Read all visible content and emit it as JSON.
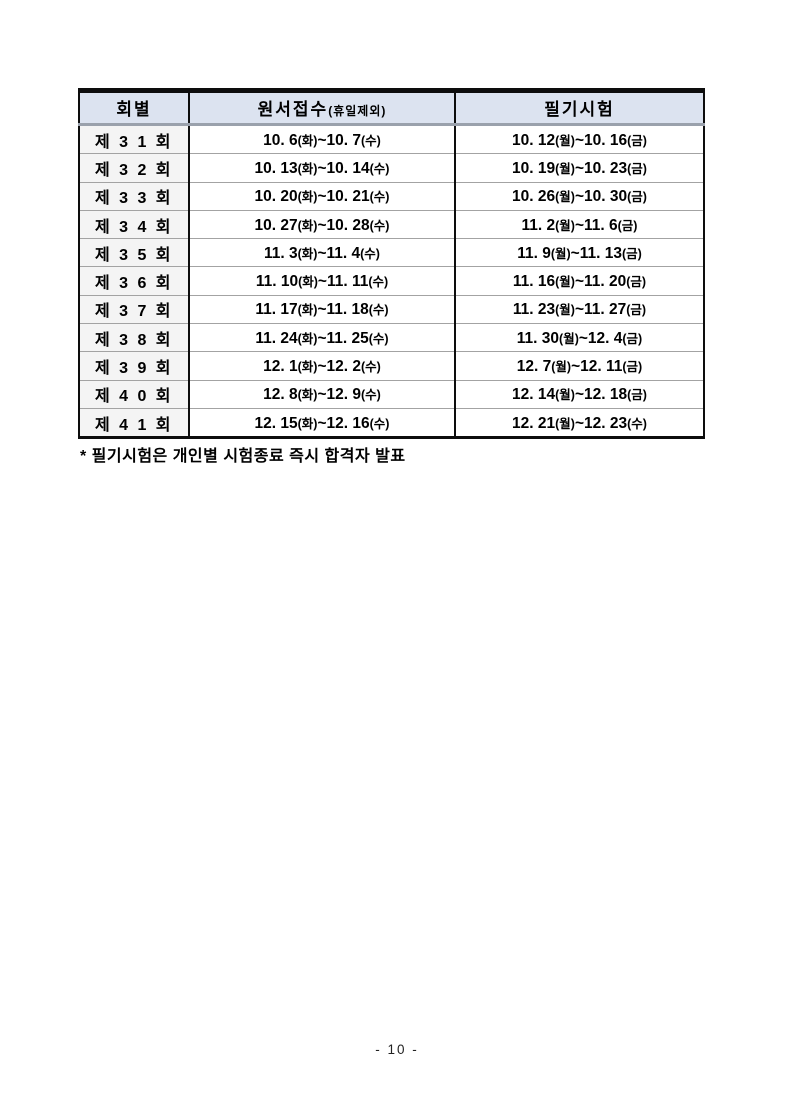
{
  "colors": {
    "header_background": "#dce3f0",
    "round_column_background": "#f4f4f4",
    "table_border": "#0d0d0d",
    "header_underline": "#9aa1ac",
    "row_separator": "#a3a3a3"
  },
  "table": {
    "headers": [
      {
        "label": "회별"
      },
      {
        "label": "원서접수",
        "sub": "(휴일제외)"
      },
      {
        "label": "필기시험"
      }
    ],
    "rows": [
      {
        "round": "제 3 1 회",
        "application": "10. 6(화)~10. 7(수)",
        "exam": "10. 12(월)~10. 16(금)"
      },
      {
        "round": "제 3 2 회",
        "application": "10. 13(화)~10. 14(수)",
        "exam": "10. 19(월)~10. 23(금)"
      },
      {
        "round": "제 3 3 회",
        "application": "10. 20(화)~10. 21(수)",
        "exam": "10. 26(월)~10. 30(금)"
      },
      {
        "round": "제 3 4 회",
        "application": "10. 27(화)~10. 28(수)",
        "exam": "11. 2(월)~11. 6(금)"
      },
      {
        "round": "제 3 5 회",
        "application": "11. 3(화)~11. 4(수)",
        "exam": "11. 9(월)~11. 13(금)"
      },
      {
        "round": "제 3 6 회",
        "application": "11. 10(화)~11. 11(수)",
        "exam": "11. 16(월)~11. 20(금)"
      },
      {
        "round": "제 3 7 회",
        "application": "11. 17(화)~11. 18(수)",
        "exam": "11. 23(월)~11. 27(금)"
      },
      {
        "round": "제 3 8 회",
        "application": "11. 24(화)~11. 25(수)",
        "exam": "11. 30(월)~12. 4(금)"
      },
      {
        "round": "제 3 9 회",
        "application": "12. 1(화)~12. 2(수)",
        "exam": "12. 7(월)~12. 11(금)"
      },
      {
        "round": "제 4 0 회",
        "application": "12. 8(화)~12. 9(수)",
        "exam": "12. 14(월)~12. 18(금)"
      },
      {
        "round": "제 4 1 회",
        "application": "12. 15(화)~12. 16(수)",
        "exam": "12. 21(월)~12. 23(수)"
      }
    ]
  },
  "footnote": "* 필기시험은 개인별 시험종료 즉시 합격자 발표",
  "page": {
    "number_label": "- 10 -"
  }
}
